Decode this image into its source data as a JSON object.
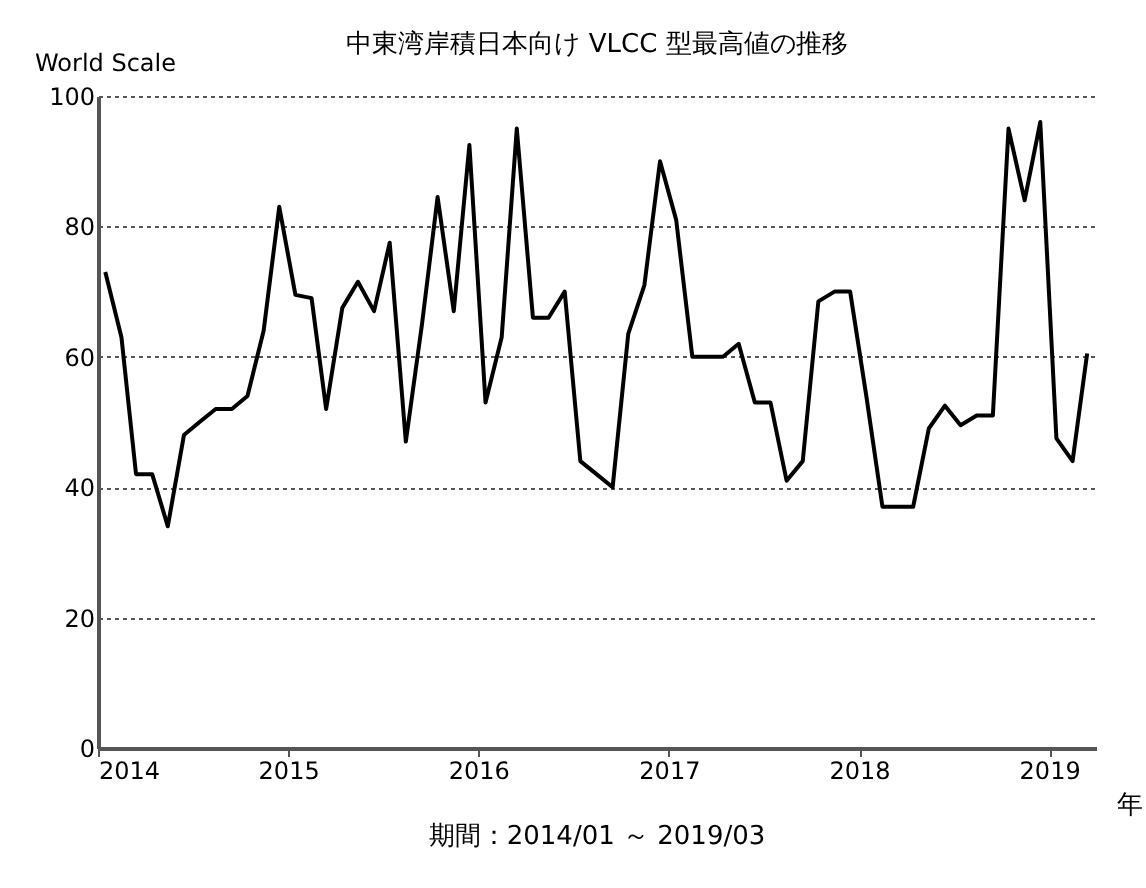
{
  "chart_data": {
    "type": "line",
    "title": "中東湾岸積日本向け VLCC 型最高値の推移",
    "ylabel": "World Scale",
    "xlabel": "年",
    "annotations": [
      "期間：2014/01 ～ 2019/03"
    ],
    "x": [
      "2014-01-15",
      "2014-02-15",
      "2014-03-15",
      "2014-04-15",
      "2014-05-15",
      "2014-06-15",
      "2014-07-15",
      "2014-08-15",
      "2014-09-15",
      "2014-10-15",
      "2014-11-15",
      "2014-12-15",
      "2015-01-15",
      "2015-02-15",
      "2015-03-15",
      "2015-04-15",
      "2015-05-15",
      "2015-06-15",
      "2015-07-15",
      "2015-08-15",
      "2015-09-15",
      "2015-10-15",
      "2015-11-15",
      "2015-12-15",
      "2016-01-15",
      "2016-02-15",
      "2016-03-15",
      "2016-04-15",
      "2016-05-15",
      "2016-06-15",
      "2016-07-15",
      "2016-08-15",
      "2016-09-15",
      "2016-10-15",
      "2016-11-15",
      "2016-12-15",
      "2017-01-15",
      "2017-02-15",
      "2017-03-15",
      "2017-04-15",
      "2017-05-15",
      "2017-06-15",
      "2017-07-15",
      "2017-08-15",
      "2017-09-15",
      "2017-10-15",
      "2017-11-15",
      "2017-12-15",
      "2018-01-15",
      "2018-02-15",
      "2018-03-15",
      "2018-04-15",
      "2018-05-15",
      "2018-06-15",
      "2018-07-15",
      "2018-08-15",
      "2018-09-15",
      "2018-10-15",
      "2018-11-15",
      "2018-12-15",
      "2019-01-15",
      "2019-02-15",
      "2019-03-15"
    ],
    "series": [
      {
        "color": "#000000",
        "values": [
          73,
          63,
          42,
          42,
          34,
          48,
          50,
          52,
          52,
          54,
          64,
          83,
          69.5,
          69,
          52,
          67.5,
          71.5,
          67,
          77.5,
          47,
          65,
          84.5,
          67,
          92.5,
          53,
          63,
          95,
          66,
          66,
          70,
          44,
          42,
          40,
          63.5,
          71,
          90,
          81,
          60,
          60,
          60,
          62,
          53,
          53,
          41,
          44,
          68.5,
          70,
          70,
          54,
          37,
          37,
          37,
          49,
          52.5,
          49.5,
          51,
          51,
          95,
          84,
          96,
          47.5,
          44,
          60.5
        ]
      }
    ],
    "xlim": [
      "2014-01-01",
      "2019-04-01"
    ],
    "xticks": [
      "2014",
      "2015",
      "2016",
      "2017",
      "2018",
      "2019"
    ],
    "ylim": [
      0,
      100
    ],
    "yticks": [
      0,
      20,
      40,
      60,
      80,
      100
    ],
    "grid": "y",
    "marker": "none",
    "line_style": "solid",
    "legend": false
  }
}
